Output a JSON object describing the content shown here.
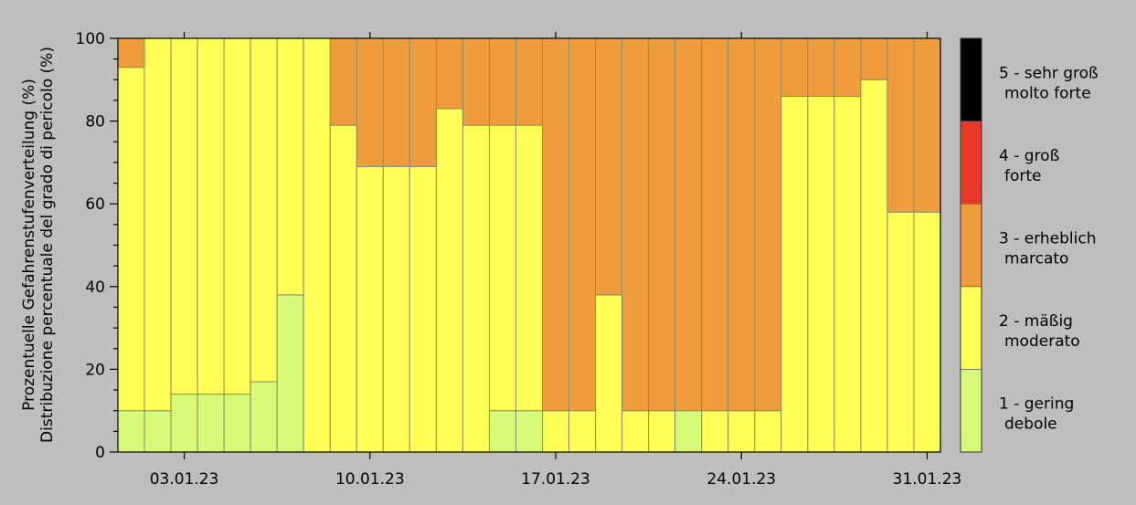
{
  "chart_data": {
    "type": "bar",
    "stacked": true,
    "ylabel_line1": "Prozentuelle Gefahrenstufenverteilung (%)",
    "ylabel_line2": "Distribuzione percentuale del grado di pericolo (%)",
    "ylim": [
      0,
      100
    ],
    "y_ticks": [
      "0",
      "20",
      "40",
      "60",
      "80",
      "100"
    ],
    "x_tick_labels": [
      {
        "day": 3,
        "label": "03.01.23"
      },
      {
        "day": 10,
        "label": "10.01.23"
      },
      {
        "day": 17,
        "label": "17.01.23"
      },
      {
        "day": 24,
        "label": "24.01.23"
      },
      {
        "day": 31,
        "label": "31.01.23"
      }
    ],
    "days": [
      1,
      2,
      3,
      4,
      5,
      6,
      7,
      8,
      9,
      10,
      11,
      12,
      13,
      14,
      15,
      16,
      17,
      18,
      19,
      20,
      21,
      22,
      23,
      24,
      25,
      26,
      27,
      28,
      29,
      30,
      31
    ],
    "series": [
      {
        "level": 1,
        "color": "#d6fa78",
        "values": [
          10,
          10,
          14,
          14,
          14,
          17,
          38,
          0,
          0,
          0,
          0,
          0,
          0,
          0,
          10,
          10,
          0,
          0,
          0,
          0,
          0,
          10,
          0,
          0,
          0,
          0,
          0,
          0,
          0,
          0,
          0
        ]
      },
      {
        "level": 2,
        "color": "#ffff55",
        "values": [
          83,
          90,
          86,
          86,
          86,
          83,
          62,
          100,
          79,
          69,
          69,
          69,
          83,
          79,
          69,
          69,
          10,
          10,
          38,
          10,
          10,
          0,
          10,
          10,
          10,
          86,
          86,
          86,
          90,
          58,
          58
        ]
      },
      {
        "level": 3,
        "color": "#f09c3c",
        "values": [
          7,
          0,
          0,
          0,
          0,
          0,
          0,
          0,
          21,
          31,
          31,
          31,
          17,
          21,
          21,
          21,
          90,
          90,
          62,
          90,
          90,
          90,
          90,
          90,
          90,
          14,
          14,
          14,
          10,
          42,
          42
        ]
      },
      {
        "level": 4,
        "color": "#e8382a",
        "values": [
          0,
          0,
          0,
          0,
          0,
          0,
          0,
          0,
          0,
          0,
          0,
          0,
          0,
          0,
          0,
          0,
          0,
          0,
          0,
          0,
          0,
          0,
          0,
          0,
          0,
          0,
          0,
          0,
          0,
          0,
          0
        ]
      },
      {
        "level": 5,
        "color": "#000000",
        "values": [
          0,
          0,
          0,
          0,
          0,
          0,
          0,
          0,
          0,
          0,
          0,
          0,
          0,
          0,
          0,
          0,
          0,
          0,
          0,
          0,
          0,
          0,
          0,
          0,
          0,
          0,
          0,
          0,
          0,
          0,
          0
        ]
      }
    ],
    "legend": [
      {
        "level": 1,
        "color": "#d6fa78",
        "line1": "1 - gering",
        "line2": "debole"
      },
      {
        "level": 2,
        "color": "#ffff55",
        "line1": "2 - mäßig",
        "line2": "moderato"
      },
      {
        "level": 3,
        "color": "#f09c3c",
        "line1": "3 - erheblich",
        "line2": "marcato"
      },
      {
        "level": 4,
        "color": "#e8382a",
        "line1": "4 - groß",
        "line2": "forte"
      },
      {
        "level": 5,
        "color": "#000000",
        "line1": "5 - sehr groß",
        "line2": "molto forte"
      }
    ],
    "legend_placement": "right",
    "grid": false
  }
}
